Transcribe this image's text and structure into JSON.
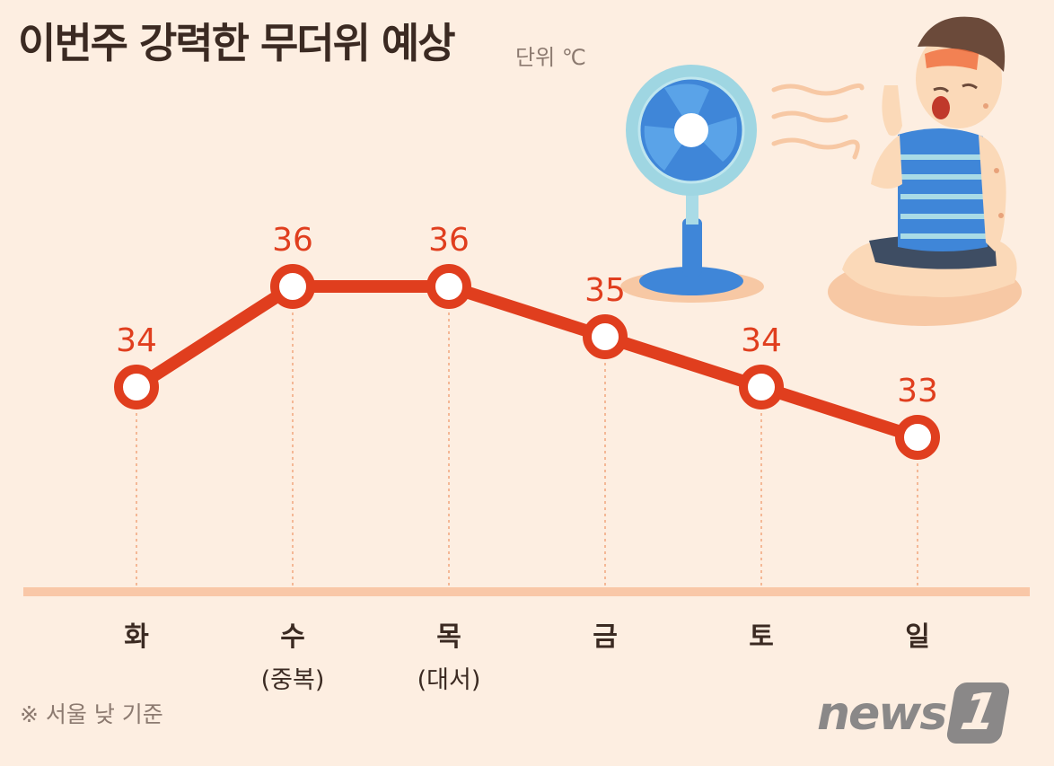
{
  "title": "이번주 강력한 무더위 예상",
  "unit": "단위 ℃",
  "footnote": "※ 서울 낮 기준",
  "logo": {
    "text": "news",
    "number": "1"
  },
  "chart_data": {
    "type": "line",
    "categories": [
      "화",
      "수",
      "목",
      "금",
      "토",
      "일"
    ],
    "sub_labels": [
      "",
      "(중복)",
      "(대서)",
      "",
      "",
      ""
    ],
    "values": [
      34,
      36,
      36,
      35,
      34,
      33
    ],
    "data_labels": [
      "34",
      "36",
      "36",
      "35",
      "34",
      "33"
    ],
    "unit": "℃",
    "colors": {
      "line": "#e03e1e",
      "point_fill": "#ffffff",
      "axis": "#f9c7a7",
      "guide": "#f2a57e",
      "label": "#e03e1e",
      "category": "#3b2a22",
      "background": "#fdeee1"
    },
    "illustrations": [
      "electric-fan",
      "sweating-boy"
    ]
  }
}
